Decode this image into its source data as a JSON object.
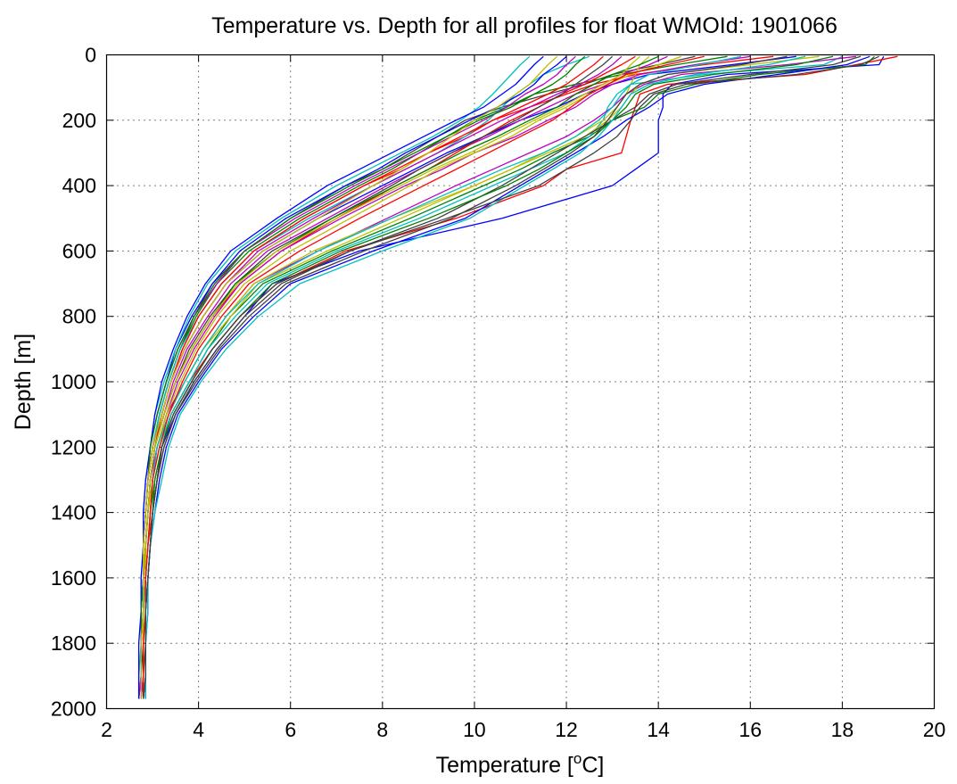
{
  "chart_data": {
    "type": "line",
    "title": "Temperature vs. Depth for all profiles for float WMOId: 1901066",
    "xlabel_main": "Temperature [",
    "xlabel_sup": "o",
    "xlabel_end": "C]",
    "ylabel": "Depth [m]",
    "xlim": [
      2,
      20
    ],
    "ylim": [
      0,
      2000
    ],
    "y_reversed": true,
    "grid": true,
    "legend": "none",
    "xticks": [
      2,
      4,
      6,
      8,
      10,
      12,
      14,
      16,
      18,
      20
    ],
    "xtick_labels": [
      "2",
      "4",
      "6",
      "8",
      "10",
      "12",
      "14",
      "16",
      "18",
      "20"
    ],
    "yticks": [
      0,
      200,
      400,
      600,
      800,
      1000,
      1200,
      1400,
      1600,
      1800,
      2000
    ],
    "ytick_labels": [
      "0",
      "200",
      "400",
      "600",
      "800",
      "1000",
      "1200",
      "1400",
      "1600",
      "1800",
      "2000"
    ],
    "depth_levels": [
      5,
      30,
      60,
      90,
      120,
      160,
      200,
      250,
      300,
      350,
      400,
      500,
      600,
      700,
      800,
      900,
      1000,
      1100,
      1200,
      1300,
      1400,
      1500,
      1600,
      1700,
      1800,
      1900,
      1970
    ],
    "series": [
      {
        "color": "#0000ff",
        "values": [
          18.9,
          18.8,
          15.5,
          14.3,
          14.1,
          14.1,
          14.0,
          14.0,
          14.0,
          13.5,
          13.0,
          10.6,
          7.5,
          5.6,
          5.0,
          4.4,
          3.9,
          3.5,
          3.2,
          3.1,
          3.0,
          2.95,
          2.9,
          2.85,
          2.85,
          2.85,
          2.85
        ]
      },
      {
        "color": "#ff0000",
        "values": [
          19.2,
          18.3,
          17.2,
          14.2,
          13.6,
          13.5,
          13.4,
          13.3,
          13.2,
          12.0,
          11.5,
          9.6,
          7.2,
          5.7,
          4.9,
          4.3,
          3.8,
          3.4,
          3.2,
          3.1,
          3.0,
          2.9,
          2.85,
          2.8,
          2.8,
          2.8,
          2.75
        ]
      },
      {
        "color": "#008000",
        "values": [
          18.7,
          18.5,
          16.2,
          14.8,
          14.0,
          13.7,
          13.0,
          12.5,
          11.7,
          11.0,
          10.2,
          8.6,
          6.9,
          5.4,
          4.7,
          4.2,
          3.8,
          3.4,
          3.2,
          3.05,
          2.95,
          2.9,
          2.85,
          2.8,
          2.8,
          2.8,
          2.8
        ]
      },
      {
        "color": "#00bfbf",
        "values": [
          18.0,
          17.6,
          15.0,
          13.4,
          13.1,
          12.9,
          12.8,
          12.5,
          12.0,
          11.2,
          10.4,
          8.8,
          7.0,
          5.5,
          4.8,
          4.2,
          3.8,
          3.4,
          3.15,
          3.0,
          2.95,
          2.9,
          2.85,
          2.8,
          2.8,
          2.8,
          2.8
        ]
      },
      {
        "color": "#bf00bf",
        "values": [
          18.3,
          16.8,
          14.5,
          13.7,
          13.3,
          13.0,
          12.6,
          12.0,
          11.2,
          10.4,
          9.6,
          8.1,
          6.6,
          5.2,
          4.6,
          4.1,
          3.7,
          3.3,
          3.1,
          3.0,
          2.95,
          2.9,
          2.85,
          2.8,
          2.8,
          2.8,
          2.8
        ]
      },
      {
        "color": "#bfbf00",
        "values": [
          17.5,
          16.0,
          14.2,
          13.6,
          13.4,
          13.2,
          12.9,
          12.4,
          11.6,
          10.8,
          10.0,
          8.4,
          6.8,
          5.3,
          4.7,
          4.1,
          3.7,
          3.35,
          3.1,
          3.0,
          2.95,
          2.9,
          2.85,
          2.8,
          2.8,
          2.8,
          2.8
        ]
      },
      {
        "color": "#404040",
        "values": [
          14.8,
          14.0,
          13.0,
          12.4,
          11.6,
          10.6,
          9.8,
          9.2,
          8.6,
          8.0,
          7.2,
          6.0,
          5.0,
          4.3,
          3.9,
          3.6,
          3.35,
          3.15,
          3.0,
          2.9,
          2.85,
          2.8,
          2.8,
          2.75,
          2.75,
          2.75,
          2.75
        ]
      },
      {
        "color": "#0000ff",
        "values": [
          17.0,
          15.6,
          13.8,
          13.0,
          12.4,
          11.8,
          11.0,
          10.2,
          9.4,
          8.7,
          8.0,
          6.6,
          5.4,
          4.6,
          4.1,
          3.7,
          3.4,
          3.2,
          3.0,
          2.9,
          2.85,
          2.8,
          2.8,
          2.8,
          2.75,
          2.75,
          2.75
        ]
      },
      {
        "color": "#ff0000",
        "values": [
          16.5,
          15.0,
          13.5,
          12.6,
          12.0,
          11.2,
          10.4,
          9.8,
          9.0,
          8.4,
          7.6,
          6.3,
          5.2,
          4.5,
          4.0,
          3.65,
          3.4,
          3.2,
          3.05,
          2.95,
          2.9,
          2.85,
          2.8,
          2.8,
          2.8,
          2.8,
          2.8
        ]
      },
      {
        "color": "#008000",
        "values": [
          15.5,
          14.4,
          13.2,
          12.2,
          11.3,
          10.7,
          10.0,
          9.4,
          8.8,
          8.2,
          7.5,
          6.2,
          5.1,
          4.4,
          3.95,
          3.6,
          3.35,
          3.15,
          3.0,
          2.9,
          2.85,
          2.8,
          2.8,
          2.75,
          2.75,
          2.75,
          2.75
        ]
      },
      {
        "color": "#00bfbf",
        "values": [
          12.5,
          12.0,
          11.5,
          11.2,
          10.9,
          10.6,
          10.3,
          9.8,
          9.2,
          8.5,
          7.8,
          6.4,
          5.2,
          4.5,
          4.0,
          3.6,
          3.35,
          3.15,
          3.0,
          2.9,
          2.85,
          2.8,
          2.8,
          2.8,
          2.8,
          2.8,
          2.75
        ]
      },
      {
        "color": "#bf00bf",
        "values": [
          14.2,
          13.8,
          13.2,
          12.8,
          12.2,
          11.6,
          11.0,
          10.3,
          9.5,
          8.8,
          8.1,
          6.8,
          5.5,
          4.7,
          4.2,
          3.75,
          3.45,
          3.25,
          3.05,
          2.95,
          2.9,
          2.85,
          2.8,
          2.8,
          2.8,
          2.8,
          2.8
        ]
      },
      {
        "color": "#bfbf00",
        "values": [
          13.8,
          13.6,
          13.5,
          13.4,
          13.3,
          13.1,
          12.8,
          12.2,
          11.5,
          10.8,
          10.0,
          8.2,
          6.5,
          5.2,
          4.6,
          4.1,
          3.7,
          3.35,
          3.1,
          3.0,
          2.95,
          2.9,
          2.85,
          2.8,
          2.8,
          2.8,
          2.8
        ]
      },
      {
        "color": "#404040",
        "values": [
          18.4,
          17.8,
          16.0,
          14.4,
          13.8,
          13.5,
          13.0,
          12.4,
          11.8,
          11.2,
          10.6,
          9.2,
          7.3,
          5.8,
          5.0,
          4.4,
          3.9,
          3.5,
          3.25,
          3.1,
          3.0,
          2.95,
          2.9,
          2.85,
          2.85,
          2.8,
          2.8
        ]
      },
      {
        "color": "#0000ff",
        "values": [
          12.0,
          11.8,
          11.5,
          11.3,
          11.0,
          10.5,
          9.9,
          9.2,
          8.5,
          7.9,
          7.2,
          5.9,
          4.9,
          4.3,
          3.85,
          3.5,
          3.3,
          3.1,
          2.95,
          2.9,
          2.85,
          2.8,
          2.8,
          2.75,
          2.75,
          2.75,
          2.7
        ]
      },
      {
        "color": "#ff0000",
        "values": [
          13.5,
          13.2,
          12.8,
          12.4,
          11.9,
          11.4,
          10.8,
          10.2,
          9.6,
          9.0,
          8.3,
          7.0,
          5.8,
          4.9,
          4.3,
          3.85,
          3.5,
          3.25,
          3.05,
          2.95,
          2.9,
          2.85,
          2.85,
          2.8,
          2.8,
          2.8,
          2.8
        ]
      },
      {
        "color": "#008000",
        "values": [
          17.8,
          17.0,
          15.2,
          13.9,
          13.5,
          13.3,
          13.0,
          12.6,
          12.0,
          11.4,
          10.7,
          9.0,
          7.1,
          5.6,
          4.9,
          4.3,
          3.85,
          3.45,
          3.2,
          3.05,
          3.0,
          2.95,
          2.9,
          2.85,
          2.85,
          2.85,
          2.8
        ]
      },
      {
        "color": "#00bfbf",
        "values": [
          11.2,
          11.0,
          10.8,
          10.6,
          10.4,
          10.1,
          9.7,
          9.1,
          8.4,
          7.7,
          7.0,
          5.8,
          4.8,
          4.2,
          3.8,
          3.5,
          3.25,
          3.05,
          2.95,
          2.85,
          2.8,
          2.8,
          2.75,
          2.75,
          2.75,
          2.7,
          2.7
        ]
      },
      {
        "color": "#bf00bf",
        "values": [
          16.0,
          14.8,
          13.6,
          13.0,
          12.6,
          12.2,
          11.6,
          10.9,
          10.0,
          9.3,
          8.5,
          7.1,
          5.8,
          4.9,
          4.35,
          3.9,
          3.55,
          3.3,
          3.1,
          2.95,
          2.9,
          2.85,
          2.8,
          2.8,
          2.8,
          2.8,
          2.75
        ]
      },
      {
        "color": "#bfbf00",
        "values": [
          14.5,
          14.0,
          13.4,
          12.9,
          12.5,
          12.0,
          11.4,
          10.8,
          10.0,
          9.2,
          8.6,
          7.3,
          6.0,
          5.0,
          4.4,
          3.95,
          3.6,
          3.3,
          3.1,
          3.0,
          2.9,
          2.85,
          2.85,
          2.8,
          2.8,
          2.8,
          2.8
        ]
      },
      {
        "color": "#404040",
        "values": [
          13.0,
          12.8,
          12.5,
          12.2,
          11.9,
          11.4,
          10.9,
          10.2,
          9.5,
          8.8,
          8.2,
          6.9,
          5.6,
          4.8,
          4.25,
          3.8,
          3.5,
          3.25,
          3.05,
          2.95,
          2.9,
          2.85,
          2.8,
          2.8,
          2.8,
          2.75,
          2.75
        ]
      },
      {
        "color": "#0000ff",
        "values": [
          18.6,
          18.1,
          16.6,
          15.0,
          14.2,
          13.8,
          13.3,
          12.8,
          12.2,
          11.6,
          11.0,
          9.8,
          7.8,
          6.0,
          5.2,
          4.5,
          4.0,
          3.55,
          3.3,
          3.15,
          3.05,
          2.95,
          2.9,
          2.9,
          2.85,
          2.85,
          2.85
        ]
      },
      {
        "color": "#ff0000",
        "values": [
          12.8,
          12.6,
          12.3,
          12.0,
          11.6,
          11.0,
          10.4,
          9.7,
          9.0,
          8.3,
          7.6,
          6.3,
          5.2,
          4.5,
          4.0,
          3.65,
          3.4,
          3.2,
          3.0,
          2.9,
          2.85,
          2.8,
          2.8,
          2.8,
          2.75,
          2.75,
          2.75
        ]
      },
      {
        "color": "#008000",
        "values": [
          14.0,
          13.6,
          13.0,
          12.6,
          12.2,
          11.8,
          11.2,
          10.5,
          9.7,
          9.0,
          8.3,
          6.9,
          5.7,
          4.8,
          4.3,
          3.85,
          3.5,
          3.25,
          3.05,
          2.95,
          2.9,
          2.85,
          2.8,
          2.8,
          2.8,
          2.8,
          2.8
        ]
      },
      {
        "color": "#00bfbf",
        "values": [
          15.8,
          14.9,
          13.8,
          13.4,
          13.2,
          13.0,
          12.7,
          12.2,
          11.5,
          10.6,
          9.8,
          8.2,
          6.6,
          5.3,
          4.6,
          4.1,
          3.7,
          3.35,
          3.1,
          3.0,
          2.95,
          2.9,
          2.85,
          2.8,
          2.8,
          2.8,
          2.8
        ]
      },
      {
        "color": "#bf00bf",
        "values": [
          12.2,
          12.0,
          11.8,
          11.5,
          11.1,
          10.7,
          10.2,
          9.5,
          8.8,
          8.1,
          7.4,
          6.1,
          5.0,
          4.4,
          3.9,
          3.55,
          3.3,
          3.1,
          2.95,
          2.9,
          2.85,
          2.8,
          2.8,
          2.75,
          2.75,
          2.75,
          2.7
        ]
      },
      {
        "color": "#bfbf00",
        "values": [
          13.6,
          13.4,
          13.2,
          12.8,
          12.4,
          11.9,
          11.3,
          10.6,
          9.9,
          9.1,
          8.4,
          7.0,
          5.7,
          4.85,
          4.3,
          3.85,
          3.5,
          3.25,
          3.05,
          2.95,
          2.9,
          2.85,
          2.8,
          2.8,
          2.8,
          2.8,
          2.8
        ]
      },
      {
        "color": "#404040",
        "values": [
          16.8,
          15.8,
          14.2,
          13.6,
          13.3,
          13.1,
          12.9,
          12.6,
          12.1,
          11.5,
          10.9,
          9.5,
          7.6,
          5.9,
          5.1,
          4.45,
          3.95,
          3.5,
          3.25,
          3.1,
          3.0,
          2.95,
          2.9,
          2.85,
          2.85,
          2.85,
          2.8
        ]
      },
      {
        "color": "#0000ff",
        "values": [
          11.5,
          11.3,
          11.1,
          10.9,
          10.6,
          10.2,
          9.6,
          8.9,
          8.2,
          7.5,
          6.8,
          5.7,
          4.7,
          4.15,
          3.75,
          3.45,
          3.2,
          3.05,
          2.95,
          2.85,
          2.8,
          2.8,
          2.75,
          2.75,
          2.7,
          2.7,
          2.7
        ]
      },
      {
        "color": "#ff0000",
        "values": [
          15.0,
          14.2,
          13.3,
          12.9,
          12.5,
          12.1,
          11.7,
          11.0,
          10.3,
          9.6,
          8.9,
          7.5,
          6.2,
          5.1,
          4.5,
          4.0,
          3.65,
          3.35,
          3.15,
          3.0,
          2.95,
          2.9,
          2.85,
          2.85,
          2.8,
          2.8,
          2.8
        ]
      },
      {
        "color": "#008000",
        "values": [
          12.4,
          12.2,
          12.0,
          11.7,
          11.3,
          10.8,
          10.1,
          9.4,
          8.7,
          8.0,
          7.3,
          6.0,
          5.0,
          4.35,
          3.9,
          3.55,
          3.3,
          3.1,
          2.95,
          2.9,
          2.85,
          2.8,
          2.8,
          2.75,
          2.75,
          2.75,
          2.75
        ]
      },
      {
        "color": "#00bfbf",
        "values": [
          17.2,
          16.4,
          14.8,
          13.8,
          13.4,
          13.2,
          13.0,
          12.7,
          12.3,
          11.7,
          11.1,
          9.9,
          8.0,
          6.2,
          5.3,
          4.6,
          4.05,
          3.6,
          3.35,
          3.2,
          3.05,
          2.95,
          2.9,
          2.9,
          2.85,
          2.85,
          2.85
        ]
      },
      {
        "color": "#bf00bf",
        "values": [
          13.2,
          13.0,
          12.7,
          12.3,
          11.8,
          11.2,
          10.6,
          9.9,
          9.2,
          8.5,
          7.8,
          6.5,
          5.3,
          4.6,
          4.1,
          3.7,
          3.4,
          3.2,
          3.0,
          2.9,
          2.85,
          2.8,
          2.8,
          2.8,
          2.75,
          2.75,
          2.75
        ]
      },
      {
        "color": "#bfbf00",
        "values": [
          11.8,
          11.6,
          11.4,
          11.2,
          10.9,
          10.5,
          10.0,
          9.5,
          9.0,
          8.4,
          7.8,
          6.6,
          5.4,
          4.6,
          4.1,
          3.7,
          3.4,
          3.2,
          3.0,
          2.9,
          2.85,
          2.8,
          2.8,
          2.8,
          2.75,
          2.75,
          2.75
        ]
      },
      {
        "color": "#404040",
        "values": [
          18.8,
          18.4,
          17.0,
          14.6,
          13.9,
          13.6,
          13.4,
          13.1,
          12.6,
          12.0,
          11.4,
          9.4,
          7.3,
          5.7,
          4.9,
          4.3,
          3.85,
          3.45,
          3.2,
          3.1,
          3.0,
          2.95,
          2.9,
          2.85,
          2.85,
          2.85,
          2.8
        ]
      }
    ]
  }
}
